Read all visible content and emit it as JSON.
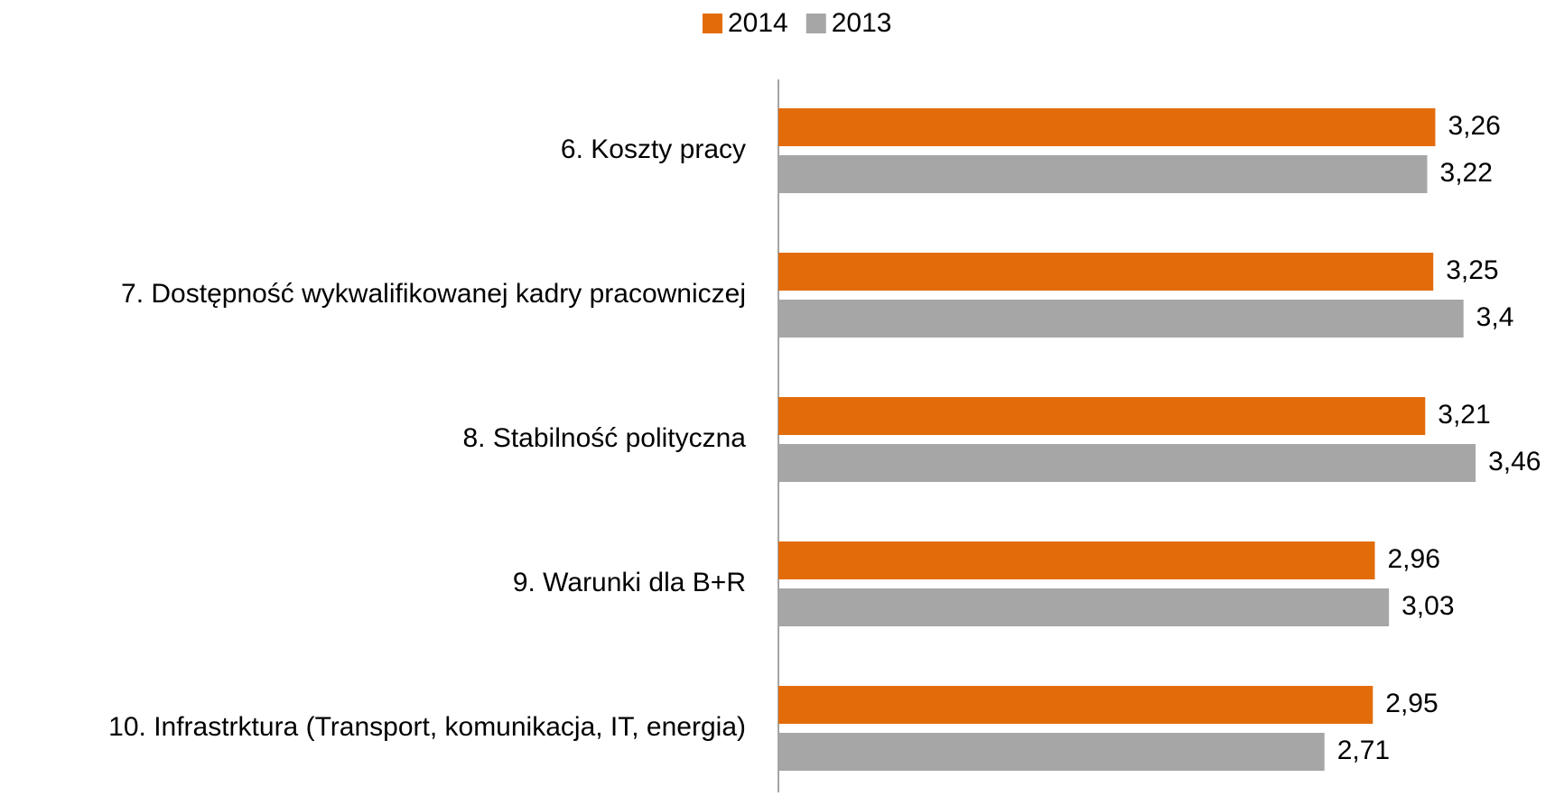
{
  "chart_data": {
    "type": "barh",
    "categories": [
      "6. Koszty pracy",
      "7. Dostępność wykwalifikowanej kadry pracowniczej",
      "8. Stabilność polityczna",
      "9. Warunki dla B+R",
      "10. Infrastrktura (Transport, komunikacja, IT, energia)"
    ],
    "series": [
      {
        "name": "2014",
        "color": "#e36c0a",
        "values": [
          3.26,
          3.25,
          3.21,
          2.96,
          2.95
        ],
        "value_labels": [
          "3,26",
          "3,25",
          "3,21",
          "2,96",
          "2,95"
        ]
      },
      {
        "name": "2013",
        "color": "#a6a6a6",
        "values": [
          3.22,
          3.4,
          3.46,
          3.03,
          2.71
        ],
        "value_labels": [
          "3,22",
          "3,4",
          "3,46",
          "3,03",
          "2,71"
        ]
      }
    ],
    "xlim": [
      0,
      3.5
    ],
    "legend": "top"
  }
}
